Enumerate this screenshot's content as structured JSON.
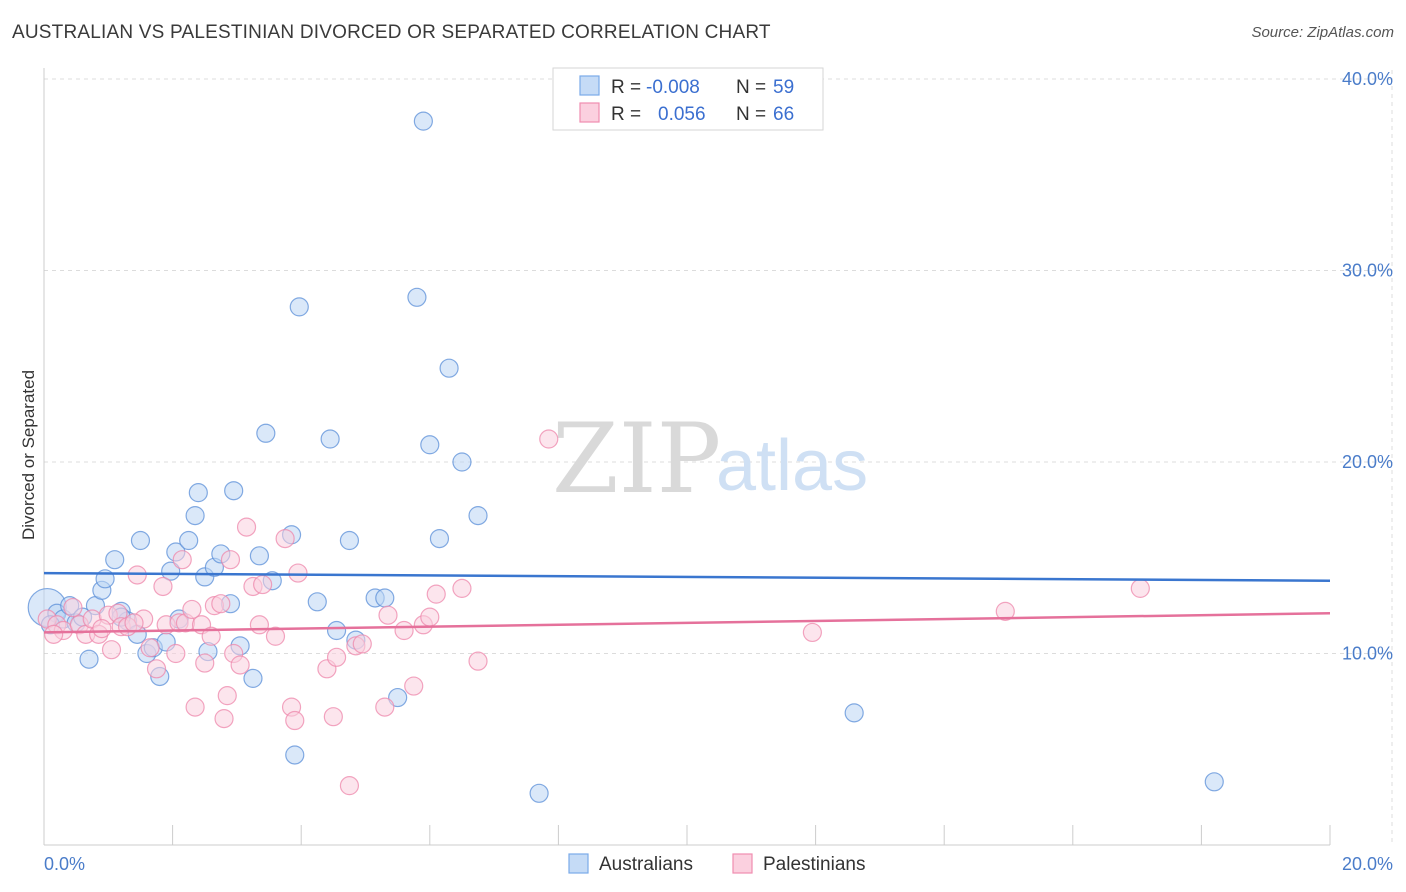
{
  "title": "AUSTRALIAN VS PALESTINIAN DIVORCED OR SEPARATED CORRELATION CHART",
  "source": "Source: ZipAtlas.com",
  "watermark": {
    "zip": "ZIP",
    "atlas": "atlas"
  },
  "legend": {
    "rows": [
      {
        "r_label": "R =",
        "r_value": "-0.008",
        "n_label": "N =",
        "n_value": "59",
        "color": "#7aaae8",
        "fill": "#c5dbf6"
      },
      {
        "r_label": "R =",
        "r_value": "0.056",
        "n_label": "N =",
        "n_value": "66",
        "color": "#f08db0",
        "fill": "#fbd0df"
      }
    ]
  },
  "bottom_legend": [
    {
      "label": "Australians",
      "color": "#7aaae8",
      "fill": "#c5dbf6"
    },
    {
      "label": "Palestinians",
      "color": "#f08db0",
      "fill": "#fbd0df"
    }
  ],
  "chart_data": {
    "type": "scatter",
    "title": "AUSTRALIAN VS PALESTINIAN DIVORCED OR SEPARATED CORRELATION CHART",
    "xlabel": "",
    "ylabel": "Divorced or Separated",
    "xlim": [
      0,
      20
    ],
    "ylim": [
      0,
      40
    ],
    "x_tick_labels": [
      "0.0%",
      "20.0%"
    ],
    "y_ticks": [
      10,
      20,
      30,
      40
    ],
    "y_tick_labels": [
      "10.0%",
      "20.0%",
      "30.0%",
      "40.0%"
    ],
    "grid": true,
    "series": [
      {
        "name": "Australians",
        "color": "#5b8fd8",
        "fill": "#bcd5f4",
        "trend": {
          "x": [
            0,
            20
          ],
          "y": [
            14.2,
            13.8
          ],
          "color": "#3a76cf"
        },
        "points": [
          [
            0.05,
            12.4
          ],
          [
            0.2,
            12.1
          ],
          [
            0.3,
            11.8
          ],
          [
            0.4,
            12.5
          ],
          [
            0.5,
            11.6
          ],
          [
            0.7,
            9.7
          ],
          [
            0.8,
            12.5
          ],
          [
            0.9,
            13.3
          ],
          [
            0.95,
            13.9
          ],
          [
            1.1,
            14.9
          ],
          [
            1.2,
            12.2
          ],
          [
            1.3,
            11.7
          ],
          [
            1.45,
            11.0
          ],
          [
            1.5,
            15.9
          ],
          [
            1.6,
            10.0
          ],
          [
            1.7,
            10.3
          ],
          [
            1.8,
            8.8
          ],
          [
            1.9,
            10.6
          ],
          [
            1.97,
            14.3
          ],
          [
            2.05,
            15.3
          ],
          [
            2.1,
            11.8
          ],
          [
            2.25,
            15.9
          ],
          [
            2.35,
            17.2
          ],
          [
            2.4,
            18.4
          ],
          [
            2.5,
            14.0
          ],
          [
            2.55,
            10.1
          ],
          [
            2.65,
            14.5
          ],
          [
            2.75,
            15.2
          ],
          [
            2.9,
            12.6
          ],
          [
            2.95,
            18.5
          ],
          [
            3.05,
            10.4
          ],
          [
            3.25,
            8.7
          ],
          [
            3.35,
            15.1
          ],
          [
            3.45,
            21.5
          ],
          [
            3.55,
            13.8
          ],
          [
            3.85,
            16.2
          ],
          [
            3.9,
            4.7
          ],
          [
            3.97,
            28.1
          ],
          [
            4.25,
            12.7
          ],
          [
            4.45,
            21.2
          ],
          [
            4.55,
            11.2
          ],
          [
            4.75,
            15.9
          ],
          [
            4.85,
            10.7
          ],
          [
            5.15,
            12.9
          ],
          [
            5.3,
            12.9
          ],
          [
            5.5,
            7.7
          ],
          [
            5.8,
            28.6
          ],
          [
            5.9,
            37.8
          ],
          [
            6.0,
            20.9
          ],
          [
            6.15,
            16.0
          ],
          [
            6.3,
            24.9
          ],
          [
            6.5,
            20.0
          ],
          [
            6.75,
            17.2
          ],
          [
            7.7,
            2.7
          ],
          [
            12.6,
            6.9
          ],
          [
            18.2,
            3.3
          ],
          [
            0.1,
            11.5
          ],
          [
            0.6,
            11.9
          ],
          [
            1.2,
            11.9
          ]
        ],
        "point_sizes": [
          38,
          18,
          18,
          18,
          18,
          18,
          18,
          18,
          18,
          18,
          18,
          18,
          18,
          18,
          18,
          18,
          18,
          18,
          18,
          18,
          18,
          18,
          18,
          18,
          18,
          18,
          18,
          18,
          18,
          18,
          18,
          18,
          18,
          18,
          18,
          18,
          18,
          18,
          18,
          18,
          18,
          18,
          18,
          18,
          18,
          18,
          18,
          18,
          18,
          18,
          18,
          18,
          18,
          18,
          18,
          18,
          18,
          18,
          18
        ]
      },
      {
        "name": "Palestinians",
        "color": "#ee87ab",
        "fill": "#fad0df",
        "trend": {
          "x": [
            0,
            20
          ],
          "y": [
            11.1,
            12.1
          ],
          "color": "#e5719b"
        },
        "points": [
          [
            0.05,
            11.8
          ],
          [
            0.2,
            11.5
          ],
          [
            0.3,
            11.2
          ],
          [
            0.45,
            12.4
          ],
          [
            0.55,
            11.5
          ],
          [
            0.65,
            11.0
          ],
          [
            0.75,
            11.8
          ],
          [
            0.85,
            11.0
          ],
          [
            1.0,
            12.0
          ],
          [
            1.05,
            10.2
          ],
          [
            1.15,
            12.1
          ],
          [
            1.2,
            11.4
          ],
          [
            1.3,
            11.4
          ],
          [
            1.45,
            14.1
          ],
          [
            1.55,
            11.8
          ],
          [
            1.65,
            10.3
          ],
          [
            1.75,
            9.2
          ],
          [
            1.85,
            13.5
          ],
          [
            1.9,
            11.5
          ],
          [
            2.05,
            10.0
          ],
          [
            2.1,
            11.6
          ],
          [
            2.15,
            14.9
          ],
          [
            2.2,
            11.6
          ],
          [
            2.3,
            12.3
          ],
          [
            2.35,
            7.2
          ],
          [
            2.45,
            11.5
          ],
          [
            2.5,
            9.5
          ],
          [
            2.6,
            10.9
          ],
          [
            2.65,
            12.5
          ],
          [
            2.75,
            12.6
          ],
          [
            2.8,
            6.6
          ],
          [
            2.85,
            7.8
          ],
          [
            2.9,
            14.9
          ],
          [
            2.95,
            10.0
          ],
          [
            3.05,
            9.4
          ],
          [
            3.15,
            16.6
          ],
          [
            3.25,
            13.5
          ],
          [
            3.35,
            11.5
          ],
          [
            3.4,
            13.6
          ],
          [
            3.6,
            10.9
          ],
          [
            3.75,
            16.0
          ],
          [
            3.85,
            7.2
          ],
          [
            3.9,
            6.5
          ],
          [
            3.95,
            14.2
          ],
          [
            4.4,
            9.2
          ],
          [
            4.5,
            6.7
          ],
          [
            4.55,
            9.8
          ],
          [
            4.75,
            3.1
          ],
          [
            4.85,
            10.4
          ],
          [
            4.95,
            10.5
          ],
          [
            5.3,
            7.2
          ],
          [
            5.35,
            12.0
          ],
          [
            5.6,
            11.2
          ],
          [
            5.75,
            8.3
          ],
          [
            5.9,
            11.5
          ],
          [
            6.0,
            11.9
          ],
          [
            6.1,
            13.1
          ],
          [
            6.5,
            13.4
          ],
          [
            6.75,
            9.6
          ],
          [
            7.85,
            21.2
          ],
          [
            11.95,
            11.1
          ],
          [
            14.95,
            12.2
          ],
          [
            17.05,
            13.4
          ],
          [
            0.15,
            11.0
          ],
          [
            0.9,
            11.3
          ],
          [
            1.4,
            11.6
          ]
        ],
        "point_sizes": [
          18,
          18,
          18,
          18,
          18,
          18,
          18,
          18,
          18,
          18,
          18,
          18,
          18,
          18,
          18,
          18,
          18,
          18,
          18,
          18,
          18,
          18,
          18,
          18,
          18,
          18,
          18,
          18,
          18,
          18,
          18,
          18,
          18,
          18,
          18,
          18,
          18,
          18,
          18,
          18,
          18,
          18,
          18,
          18,
          18,
          18,
          18,
          18,
          18,
          18,
          18,
          18,
          18,
          18,
          18,
          18,
          18,
          18,
          18,
          18,
          18,
          18,
          18,
          18,
          18,
          18
        ]
      }
    ]
  }
}
